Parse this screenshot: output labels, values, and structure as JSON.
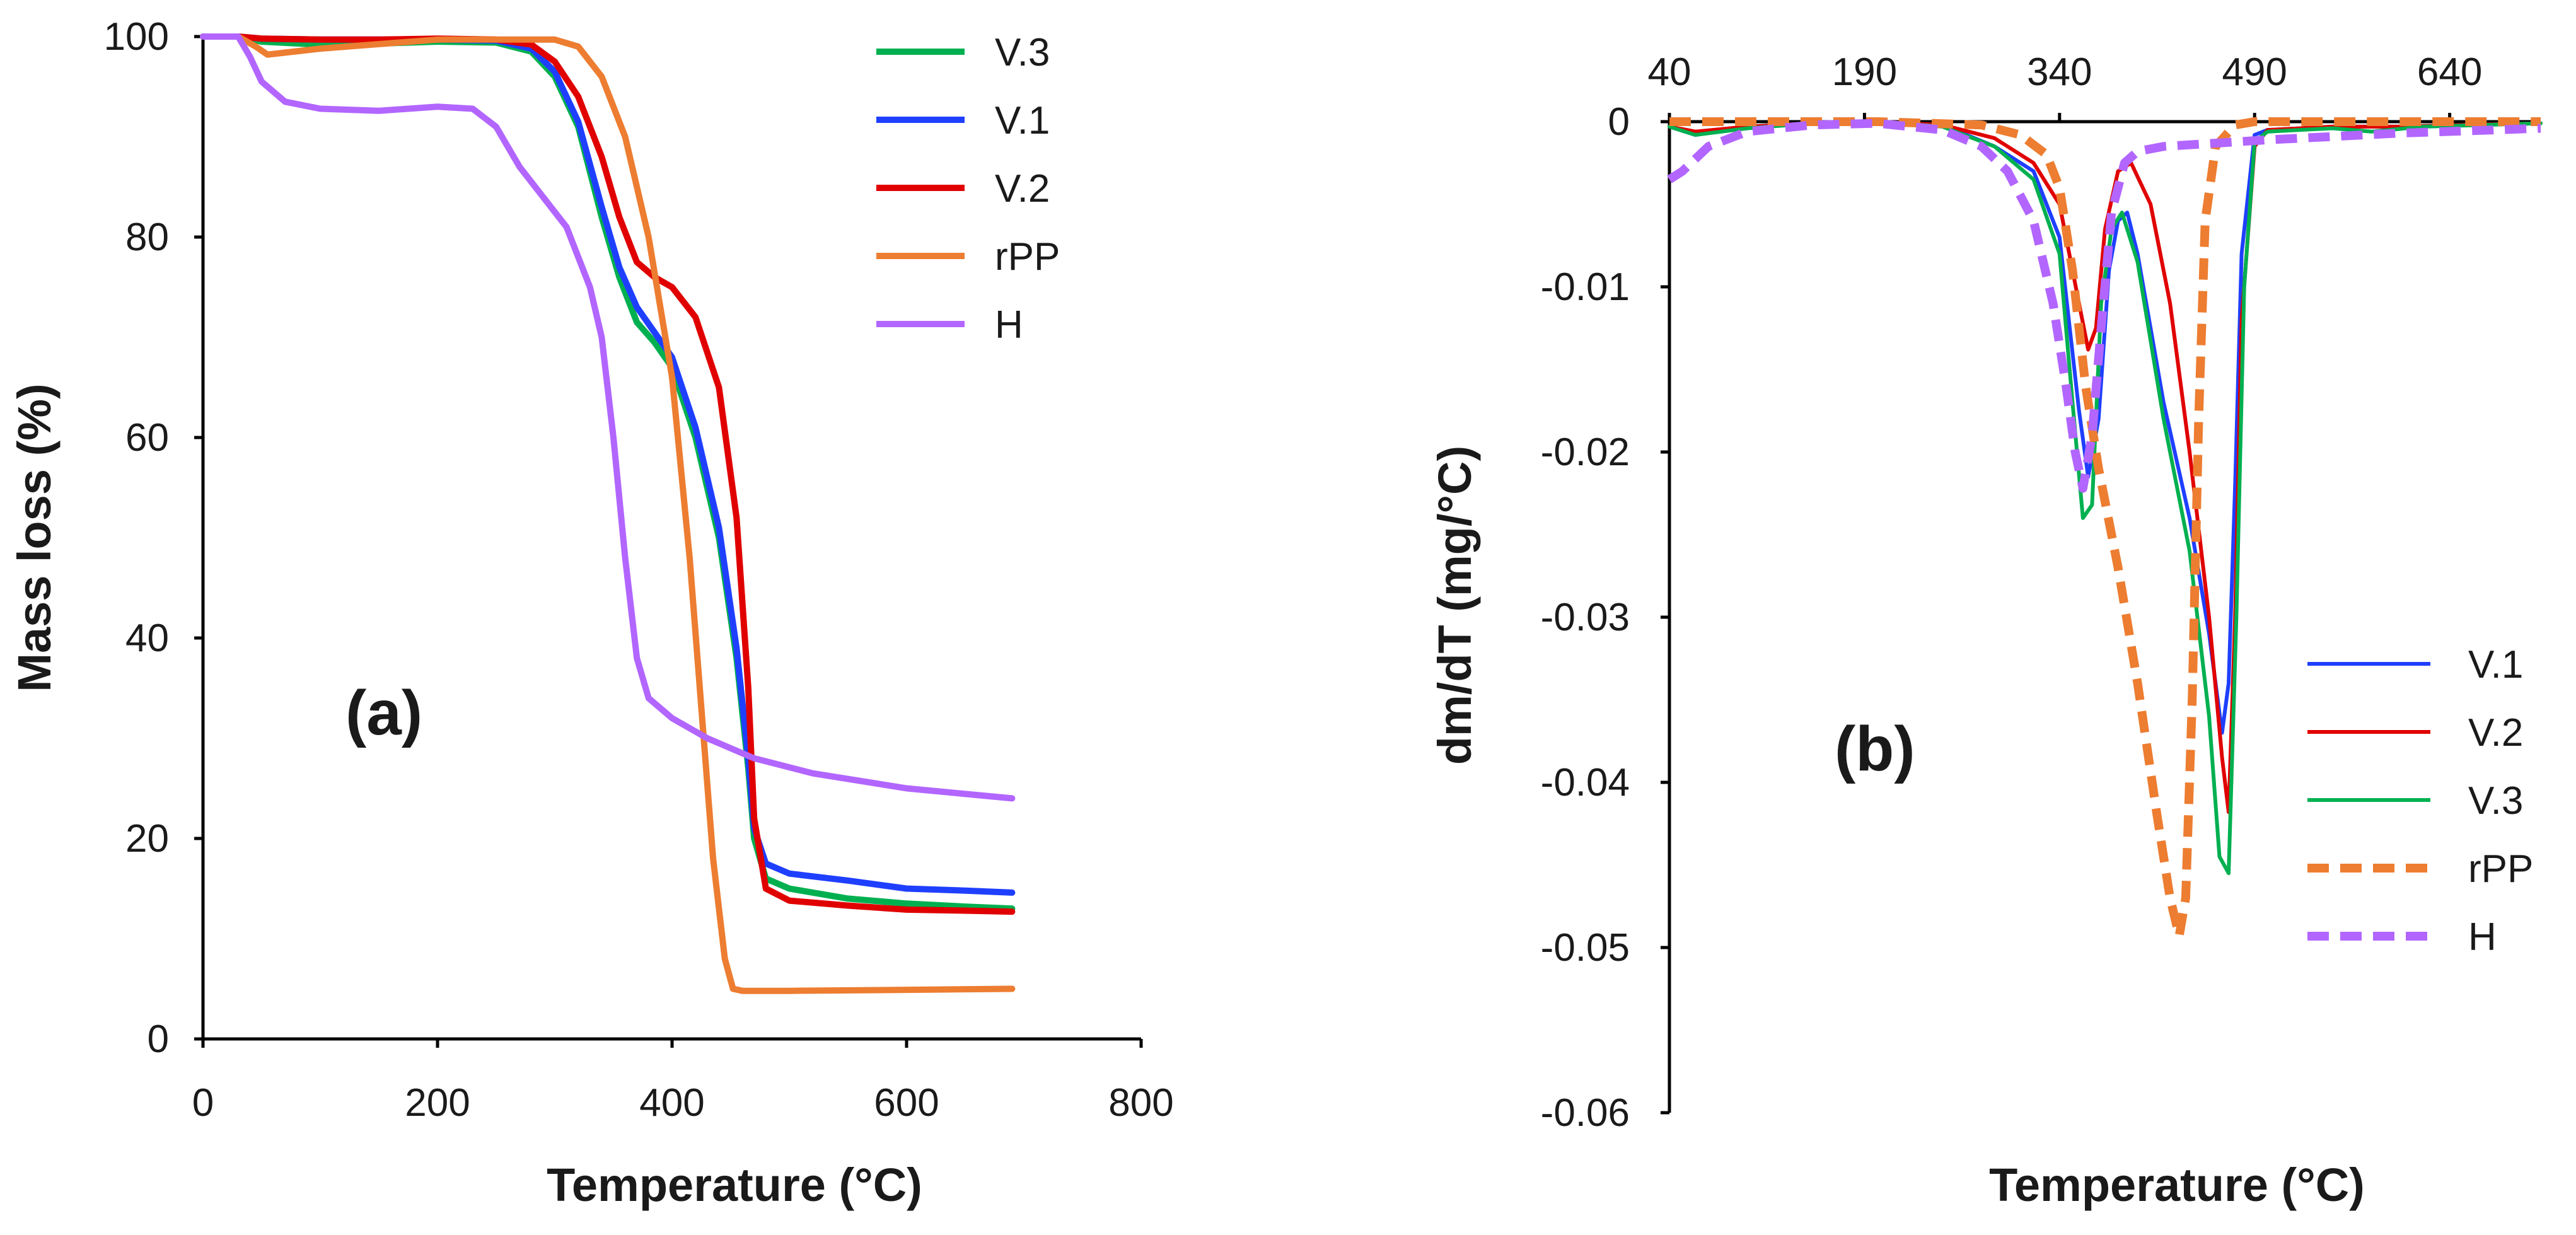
{
  "chart_data": [
    {
      "type": "line",
      "panel_label": "(a)",
      "xlabel": "Temperature (°C)",
      "ylabel": "Mass loss (%)",
      "xlim": [
        0,
        800
      ],
      "ylim": [
        0,
        100
      ],
      "xticks": [
        "0",
        "200",
        "400",
        "600",
        "800"
      ],
      "yticks": [
        "0",
        "20",
        "40",
        "60",
        "80",
        "100"
      ],
      "grid": false,
      "legend": "top-right",
      "series": [
        {
          "name": "V.3",
          "color": "#00b050",
          "style": "solid",
          "x": [
            0,
            30,
            50,
            100,
            150,
            200,
            250,
            280,
            300,
            320,
            340,
            355,
            370,
            385,
            400,
            420,
            440,
            455,
            465,
            470,
            480,
            500,
            550,
            600,
            650,
            690
          ],
          "y": [
            100,
            100,
            99.5,
            99.2,
            99.3,
            99.5,
            99.4,
            98.5,
            96,
            91,
            82,
            76,
            71.5,
            69.5,
            67,
            60,
            50,
            38,
            27,
            20,
            16,
            15,
            14,
            13.5,
            13.2,
            13
          ]
        },
        {
          "name": "V.1",
          "color": "#1f3fff",
          "style": "solid",
          "x": [
            0,
            30,
            50,
            100,
            150,
            200,
            250,
            280,
            300,
            320,
            340,
            355,
            370,
            385,
            400,
            420,
            440,
            455,
            465,
            470,
            480,
            500,
            550,
            600,
            650,
            690
          ],
          "y": [
            100,
            100,
            99.8,
            99.7,
            99.7,
            99.7,
            99.6,
            98.8,
            96.5,
            91.5,
            83,
            77,
            73,
            70.5,
            68,
            61,
            51,
            39,
            28,
            21,
            17.5,
            16.5,
            15.8,
            15,
            14.8,
            14.6
          ]
        },
        {
          "name": "V.2",
          "color": "#e00000",
          "style": "solid",
          "x": [
            0,
            30,
            50,
            100,
            150,
            200,
            250,
            280,
            300,
            320,
            340,
            355,
            370,
            385,
            400,
            420,
            440,
            455,
            465,
            470,
            480,
            500,
            550,
            600,
            650,
            690
          ],
          "y": [
            100,
            100,
            99.8,
            99.7,
            99.7,
            99.8,
            99.7,
            99.2,
            97.5,
            94,
            88,
            82,
            77.5,
            76,
            75,
            72,
            65,
            52,
            35,
            22,
            15,
            13.8,
            13.3,
            12.9,
            12.8,
            12.7
          ]
        },
        {
          "name": "rPP",
          "color": "#ed7d31",
          "style": "solid",
          "x": [
            0,
            30,
            45,
            55,
            100,
            200,
            300,
            320,
            340,
            360,
            380,
            400,
            415,
            425,
            435,
            445,
            452,
            460,
            500,
            600,
            690
          ],
          "y": [
            100,
            100,
            99,
            98.2,
            98.8,
            99.7,
            99.7,
            99,
            96,
            90,
            80,
            66,
            48,
            33,
            18,
            8,
            5,
            4.8,
            4.8,
            4.9,
            5
          ]
        },
        {
          "name": "H",
          "color": "#b266ff",
          "style": "solid",
          "x": [
            0,
            30,
            40,
            50,
            70,
            100,
            150,
            200,
            230,
            250,
            270,
            290,
            310,
            330,
            340,
            350,
            360,
            370,
            380,
            400,
            430,
            470,
            520,
            600,
            690
          ],
          "y": [
            100,
            100,
            98,
            95.5,
            93.5,
            92.8,
            92.6,
            93,
            92.8,
            91,
            87,
            84,
            81,
            75,
            70,
            60,
            48,
            38,
            34,
            32,
            30,
            28,
            26.5,
            25,
            24
          ]
        }
      ],
      "legend_order": [
        "V.3",
        "V.1",
        "V.2",
        "rPP",
        "H"
      ]
    },
    {
      "type": "line",
      "panel_label": "(b)",
      "xlabel": "Temperature (°C)",
      "ylabel": "dm/dT (mg/°C)",
      "xlim": [
        40,
        710
      ],
      "ylim": [
        -0.06,
        0
      ],
      "xticks": [
        "40",
        "190",
        "340",
        "490",
        "640"
      ],
      "yticks": [
        "0",
        "-0.01",
        "-0.02",
        "-0.03",
        "-0.04",
        "-0.05",
        "-0.06"
      ],
      "x_axis_position": "top",
      "grid": false,
      "legend": "bottom-right",
      "series": [
        {
          "name": "V.1",
          "color": "#1f3fff",
          "style": "solid",
          "x": [
            40,
            60,
            100,
            150,
            200,
            250,
            290,
            320,
            340,
            355,
            362,
            370,
            378,
            385,
            392,
            400,
            420,
            440,
            455,
            465,
            470,
            475,
            480,
            490,
            500,
            550,
            600,
            650,
            710
          ],
          "y": [
            -0.0003,
            -0.0008,
            -0.0003,
            -0.0001,
            0,
            -0.0002,
            -0.0015,
            -0.003,
            -0.007,
            -0.0175,
            -0.0215,
            -0.018,
            -0.009,
            -0.006,
            -0.0055,
            -0.008,
            -0.017,
            -0.024,
            -0.031,
            -0.037,
            -0.034,
            -0.022,
            -0.008,
            -0.0008,
            -0.0005,
            -0.0003,
            -0.0003,
            -0.0002,
            -0.0001
          ]
        },
        {
          "name": "V.2",
          "color": "#e00000",
          "style": "solid",
          "x": [
            40,
            60,
            100,
            150,
            200,
            250,
            290,
            320,
            340,
            355,
            362,
            368,
            375,
            385,
            395,
            410,
            425,
            440,
            455,
            465,
            470,
            475,
            480,
            490,
            500,
            550,
            600,
            650,
            710
          ],
          "y": [
            -0.0003,
            -0.0006,
            -0.0003,
            -0.0001,
            0,
            -0.0002,
            -0.001,
            -0.0025,
            -0.005,
            -0.011,
            -0.0138,
            -0.0125,
            -0.0065,
            -0.003,
            -0.0025,
            -0.005,
            -0.011,
            -0.02,
            -0.03,
            -0.0385,
            -0.0418,
            -0.03,
            -0.012,
            -0.0015,
            -0.0005,
            -0.0003,
            -0.0003,
            -0.0002,
            -0.0001
          ]
        },
        {
          "name": "V.3",
          "color": "#00b050",
          "style": "solid",
          "x": [
            40,
            60,
            100,
            150,
            200,
            250,
            290,
            320,
            340,
            350,
            358,
            365,
            372,
            380,
            388,
            400,
            420,
            440,
            455,
            463,
            470,
            476,
            482,
            490,
            500,
            550,
            580,
            620,
            710
          ],
          "y": [
            -0.0003,
            -0.0008,
            -0.0004,
            -0.0001,
            0,
            -0.0003,
            -0.0015,
            -0.0035,
            -0.008,
            -0.017,
            -0.024,
            -0.0232,
            -0.011,
            -0.0065,
            -0.0055,
            -0.0085,
            -0.018,
            -0.026,
            -0.036,
            -0.0445,
            -0.0455,
            -0.03,
            -0.01,
            -0.0012,
            -0.0006,
            -0.0004,
            -0.0006,
            -0.0003,
            -0.0001
          ]
        },
        {
          "name": "rPP",
          "color": "#ed7d31",
          "style": "dashed",
          "x": [
            40,
            100,
            200,
            280,
            310,
            330,
            340,
            350,
            360,
            370,
            385,
            400,
            415,
            425,
            432,
            437,
            442,
            447,
            452,
            460,
            475,
            490,
            520,
            600,
            710
          ],
          "y": [
            0,
            0,
            0,
            -0.0002,
            -0.0008,
            -0.002,
            -0.004,
            -0.009,
            -0.016,
            -0.021,
            -0.027,
            -0.034,
            -0.042,
            -0.047,
            -0.0493,
            -0.047,
            -0.035,
            -0.018,
            -0.006,
            -0.0015,
            -0.0002,
            0,
            0,
            0,
            0
          ]
        },
        {
          "name": "H",
          "color": "#b266ff",
          "style": "dashed",
          "x": [
            40,
            50,
            70,
            100,
            150,
            200,
            250,
            280,
            300,
            320,
            335,
            345,
            352,
            358,
            365,
            372,
            380,
            390,
            400,
            420,
            460,
            500,
            550,
            600,
            710
          ],
          "y": [
            -0.0035,
            -0.003,
            -0.0015,
            -0.0006,
            -0.0002,
            -0.0001,
            -0.0005,
            -0.0015,
            -0.003,
            -0.006,
            -0.011,
            -0.016,
            -0.02,
            -0.0222,
            -0.019,
            -0.0125,
            -0.0055,
            -0.0025,
            -0.0018,
            -0.0015,
            -0.0013,
            -0.0011,
            -0.0009,
            -0.0007,
            -0.0004
          ]
        }
      ],
      "legend_order": [
        "V.1",
        "V.2",
        "V.3",
        "rPP",
        "H"
      ]
    }
  ]
}
